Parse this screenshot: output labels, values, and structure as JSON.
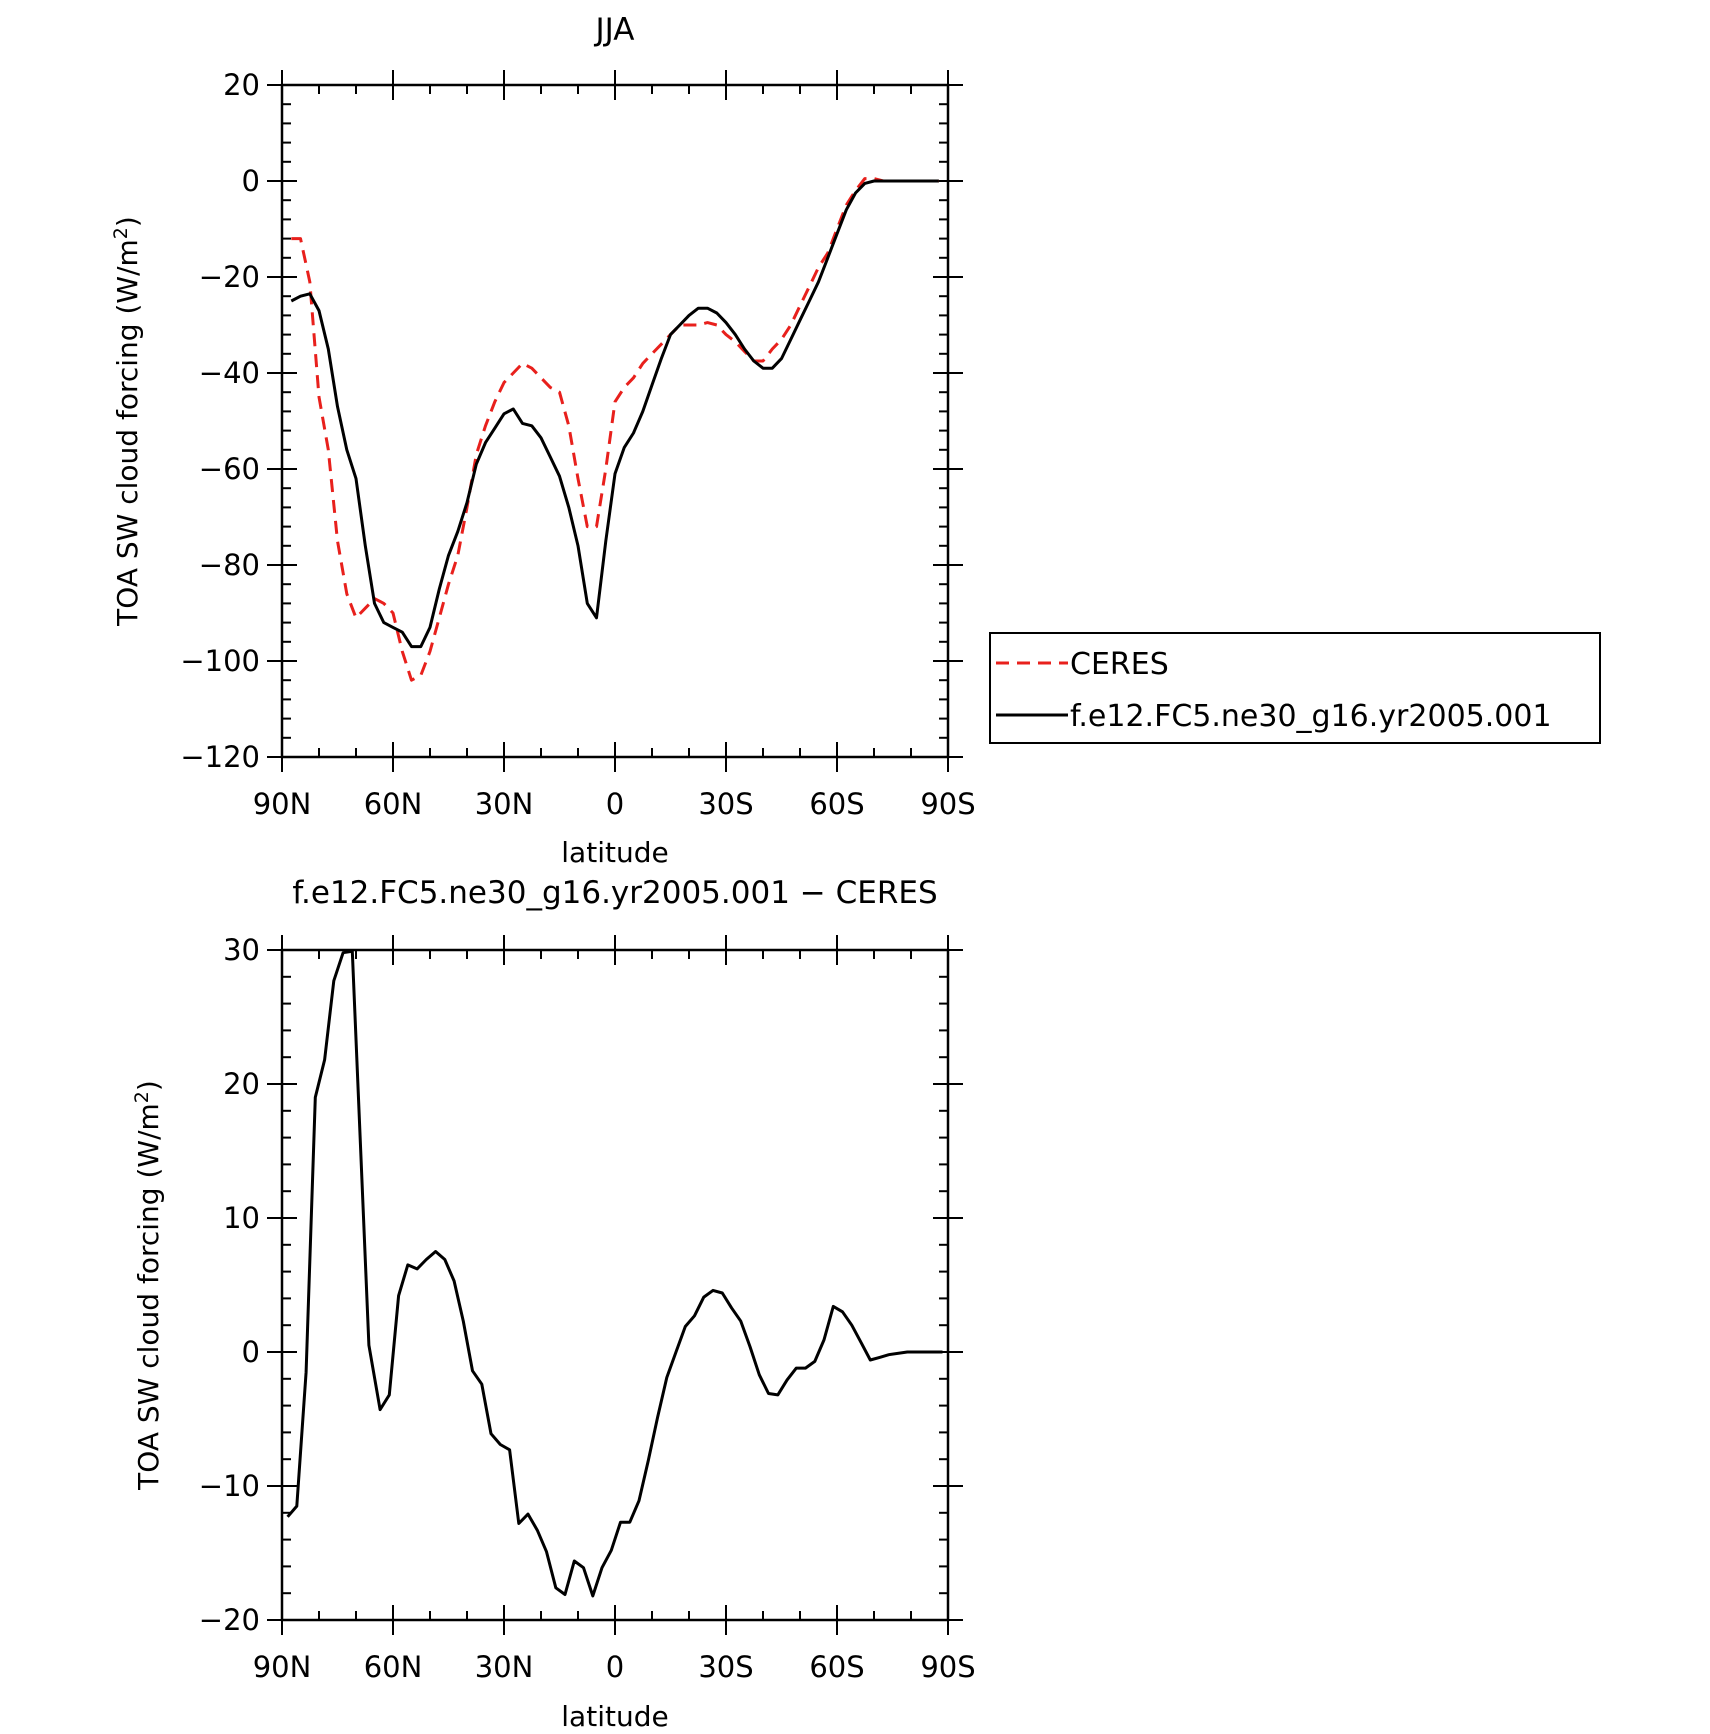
{
  "chart_data": [
    {
      "type": "line",
      "title": "JJA",
      "xlabel": "latitude",
      "ylabel_main": "TOA SW cloud forcing (W/m",
      "ylabel_sup": "2",
      "ylabel_end": ")",
      "xlim": [
        90,
        -90
      ],
      "ylim": [
        -120,
        20
      ],
      "xticks": [
        90,
        60,
        30,
        0,
        -30,
        -60,
        -90
      ],
      "xtick_labels": [
        "90N",
        "60N",
        "30N",
        "0",
        "30S",
        "60S",
        "90S"
      ],
      "yticks": [
        20,
        0,
        -20,
        -40,
        -60,
        -80,
        -100,
        -120
      ],
      "ytick_labels": [
        "20",
        "0",
        "−20",
        "−40",
        "−60",
        "−80",
        "−100",
        "−120"
      ],
      "legend_position": "right",
      "series": [
        {
          "name": "CERES",
          "color": "#e8201c",
          "dash": "dashed",
          "points": [
            [
              87.5,
              -12
            ],
            [
              85,
              -12
            ],
            [
              82.5,
              -21
            ],
            [
              80,
              -45
            ],
            [
              77.5,
              -56
            ],
            [
              75,
              -75
            ],
            [
              72.5,
              -86
            ],
            [
              70,
              -91
            ],
            [
              67.5,
              -89
            ],
            [
              65,
              -87
            ],
            [
              62.5,
              -88
            ],
            [
              60,
              -90
            ],
            [
              57.5,
              -98
            ],
            [
              55,
              -104
            ],
            [
              52.5,
              -103
            ],
            [
              50,
              -98
            ],
            [
              47.5,
              -91
            ],
            [
              45,
              -84
            ],
            [
              42.5,
              -78
            ],
            [
              40,
              -68
            ],
            [
              37.5,
              -57
            ],
            [
              35,
              -51
            ],
            [
              32.5,
              -46
            ],
            [
              30,
              -42
            ],
            [
              27.5,
              -40
            ],
            [
              25,
              -38
            ],
            [
              22.5,
              -39
            ],
            [
              20,
              -41
            ],
            [
              17.5,
              -43
            ],
            [
              15,
              -44
            ],
            [
              12.5,
              -51
            ],
            [
              10,
              -62
            ],
            [
              7.5,
              -72
            ],
            [
              5,
              -72
            ],
            [
              2.5,
              -60
            ],
            [
              0,
              -46
            ],
            [
              -2.5,
              -43
            ],
            [
              -5,
              -41
            ],
            [
              -7.5,
              -38
            ],
            [
              -10,
              -36
            ],
            [
              -12.5,
              -34
            ],
            [
              -15,
              -32
            ],
            [
              -17.5,
              -30
            ],
            [
              -20,
              -30
            ],
            [
              -22.5,
              -30
            ],
            [
              -25,
              -29.5
            ],
            [
              -27.5,
              -30
            ],
            [
              -30,
              -32
            ],
            [
              -32.5,
              -33.5
            ],
            [
              -35,
              -35.5
            ],
            [
              -37.5,
              -37.5
            ],
            [
              -40,
              -37.5
            ],
            [
              -42.5,
              -35
            ],
            [
              -45,
              -33
            ],
            [
              -47.5,
              -30
            ],
            [
              -50,
              -26
            ],
            [
              -52.5,
              -22
            ],
            [
              -55,
              -18
            ],
            [
              -57.5,
              -15
            ],
            [
              -60,
              -10
            ],
            [
              -62.5,
              -5
            ],
            [
              -65,
              -2
            ],
            [
              -67.5,
              0.5
            ],
            [
              -70,
              0.5
            ],
            [
              -72.5,
              0
            ],
            [
              -75,
              0
            ],
            [
              -80,
              0
            ],
            [
              -85,
              0
            ],
            [
              -87.5,
              0
            ]
          ]
        },
        {
          "name": "f.e12.FC5.ne30_g16.yr2005.001",
          "color": "#000000",
          "dash": "solid",
          "points": [
            [
              87.5,
              -25
            ],
            [
              85,
              -24
            ],
            [
              82.5,
              -23.5
            ],
            [
              80,
              -27
            ],
            [
              77.5,
              -35
            ],
            [
              75,
              -47
            ],
            [
              72.5,
              -56
            ],
            [
              70,
              -62
            ],
            [
              67.5,
              -76
            ],
            [
              65,
              -88
            ],
            [
              62.5,
              -92
            ],
            [
              60,
              -93
            ],
            [
              57.5,
              -94
            ],
            [
              55,
              -97
            ],
            [
              52.5,
              -97
            ],
            [
              50,
              -93
            ],
            [
              47.5,
              -85
            ],
            [
              45,
              -78
            ],
            [
              42.5,
              -73
            ],
            [
              40,
              -67
            ],
            [
              37.5,
              -59
            ],
            [
              35,
              -54.5
            ],
            [
              32.5,
              -51.5
            ],
            [
              30,
              -48.5
            ],
            [
              27.5,
              -47.5
            ],
            [
              25,
              -50.5
            ],
            [
              22.5,
              -51
            ],
            [
              20,
              -53.5
            ],
            [
              17.5,
              -57.5
            ],
            [
              15,
              -61.5
            ],
            [
              12.5,
              -68
            ],
            [
              10,
              -76
            ],
            [
              7.5,
              -88
            ],
            [
              5,
              -91
            ],
            [
              2.5,
              -75
            ],
            [
              0,
              -61
            ],
            [
              -2.5,
              -55.5
            ],
            [
              -5,
              -52.5
            ],
            [
              -7.5,
              -48
            ],
            [
              -10,
              -42.5
            ],
            [
              -12.5,
              -37
            ],
            [
              -15,
              -32
            ],
            [
              -17.5,
              -30
            ],
            [
              -20,
              -28
            ],
            [
              -22.5,
              -26.5
            ],
            [
              -25,
              -26.5
            ],
            [
              -27.5,
              -27.5
            ],
            [
              -30,
              -29.5
            ],
            [
              -32.5,
              -32
            ],
            [
              -35,
              -35
            ],
            [
              -37.5,
              -37.5
            ],
            [
              -40,
              -39
            ],
            [
              -42.5,
              -39
            ],
            [
              -45,
              -37
            ],
            [
              -47.5,
              -33
            ],
            [
              -50,
              -29
            ],
            [
              -52.5,
              -25
            ],
            [
              -55,
              -21
            ],
            [
              -57.5,
              -16
            ],
            [
              -60,
              -11
            ],
            [
              -62.5,
              -6
            ],
            [
              -65,
              -2.5
            ],
            [
              -67.5,
              -0.5
            ],
            [
              -70,
              0
            ],
            [
              -72.5,
              0
            ],
            [
              -75,
              0
            ],
            [
              -80,
              0
            ],
            [
              -85,
              0
            ],
            [
              -87.5,
              0
            ]
          ]
        }
      ]
    },
    {
      "type": "line",
      "title": "f.e12.FC5.ne30_g16.yr2005.001 − CERES",
      "xlabel": "latitude",
      "ylabel_main": "TOA SW cloud forcing (W/m",
      "ylabel_sup": "2",
      "ylabel_end": ")",
      "xlim": [
        90,
        -90
      ],
      "ylim": [
        -20,
        30
      ],
      "xticks": [
        90,
        60,
        30,
        0,
        -30,
        -60,
        -90
      ],
      "xtick_labels": [
        "90N",
        "60N",
        "30N",
        "0",
        "30S",
        "60S",
        "90S"
      ],
      "yticks": [
        30,
        20,
        10,
        0,
        -10,
        -20
      ],
      "ytick_labels": [
        "30",
        "20",
        "10",
        "0",
        "−10",
        "−20"
      ],
      "series": [
        {
          "name": "",
          "color": "#000000",
          "dash": "solid",
          "points": [
            [
              88.5,
              -12.3
            ],
            [
              86,
              -11.5
            ],
            [
              83.5,
              -1.5
            ],
            [
              81,
              19
            ],
            [
              78.5,
              21.8
            ],
            [
              76,
              27.7
            ],
            [
              73.5,
              29.8
            ],
            [
              71,
              29.9
            ],
            [
              66.5,
              0.5
            ],
            [
              63.5,
              -4.3
            ],
            [
              61,
              -3.2
            ],
            [
              58.5,
              4.2
            ],
            [
              56,
              6.5
            ],
            [
              53.5,
              6.2
            ],
            [
              51,
              6.9
            ],
            [
              48.5,
              7.5
            ],
            [
              46,
              6.9
            ],
            [
              43.5,
              5.3
            ],
            [
              41,
              2.3
            ],
            [
              38.5,
              -1.4
            ],
            [
              36,
              -2.4
            ],
            [
              33.5,
              -6.1
            ],
            [
              31,
              -6.9
            ],
            [
              28.5,
              -7.3
            ],
            [
              26,
              -12.8
            ],
            [
              23.5,
              -12.1
            ],
            [
              21,
              -13.3
            ],
            [
              18.5,
              -14.9
            ],
            [
              16,
              -17.6
            ],
            [
              13.5,
              -18.1
            ],
            [
              11,
              -15.6
            ],
            [
              8.5,
              -16.1
            ],
            [
              6,
              -18.2
            ],
            [
              3.5,
              -16.1
            ],
            [
              1,
              -14.8
            ],
            [
              -1.5,
              -12.7
            ],
            [
              -4,
              -12.7
            ],
            [
              -6.5,
              -11.1
            ],
            [
              -9,
              -8.1
            ],
            [
              -11.5,
              -4.9
            ],
            [
              -14,
              -1.9
            ],
            [
              -16.5,
              0
            ],
            [
              -19,
              1.9
            ],
            [
              -21.5,
              2.7
            ],
            [
              -24,
              4.1
            ],
            [
              -26.5,
              4.6
            ],
            [
              -29,
              4.4
            ],
            [
              -31.5,
              3.3
            ],
            [
              -34,
              2.3
            ],
            [
              -36.5,
              0.4
            ],
            [
              -39,
              -1.7
            ],
            [
              -41.5,
              -3.1
            ],
            [
              -44,
              -3.2
            ],
            [
              -46.5,
              -2.1
            ],
            [
              -49,
              -1.2
            ],
            [
              -51.5,
              -1.2
            ],
            [
              -54,
              -0.7
            ],
            [
              -56.5,
              0.9
            ],
            [
              -59,
              3.4
            ],
            [
              -61.5,
              3
            ],
            [
              -64,
              2
            ],
            [
              -66.5,
              0.7
            ],
            [
              -69,
              -0.6
            ],
            [
              -71.5,
              -0.4
            ],
            [
              -74,
              -0.2
            ],
            [
              -79,
              0
            ],
            [
              -84,
              0
            ],
            [
              -88.5,
              0
            ]
          ]
        }
      ]
    }
  ]
}
